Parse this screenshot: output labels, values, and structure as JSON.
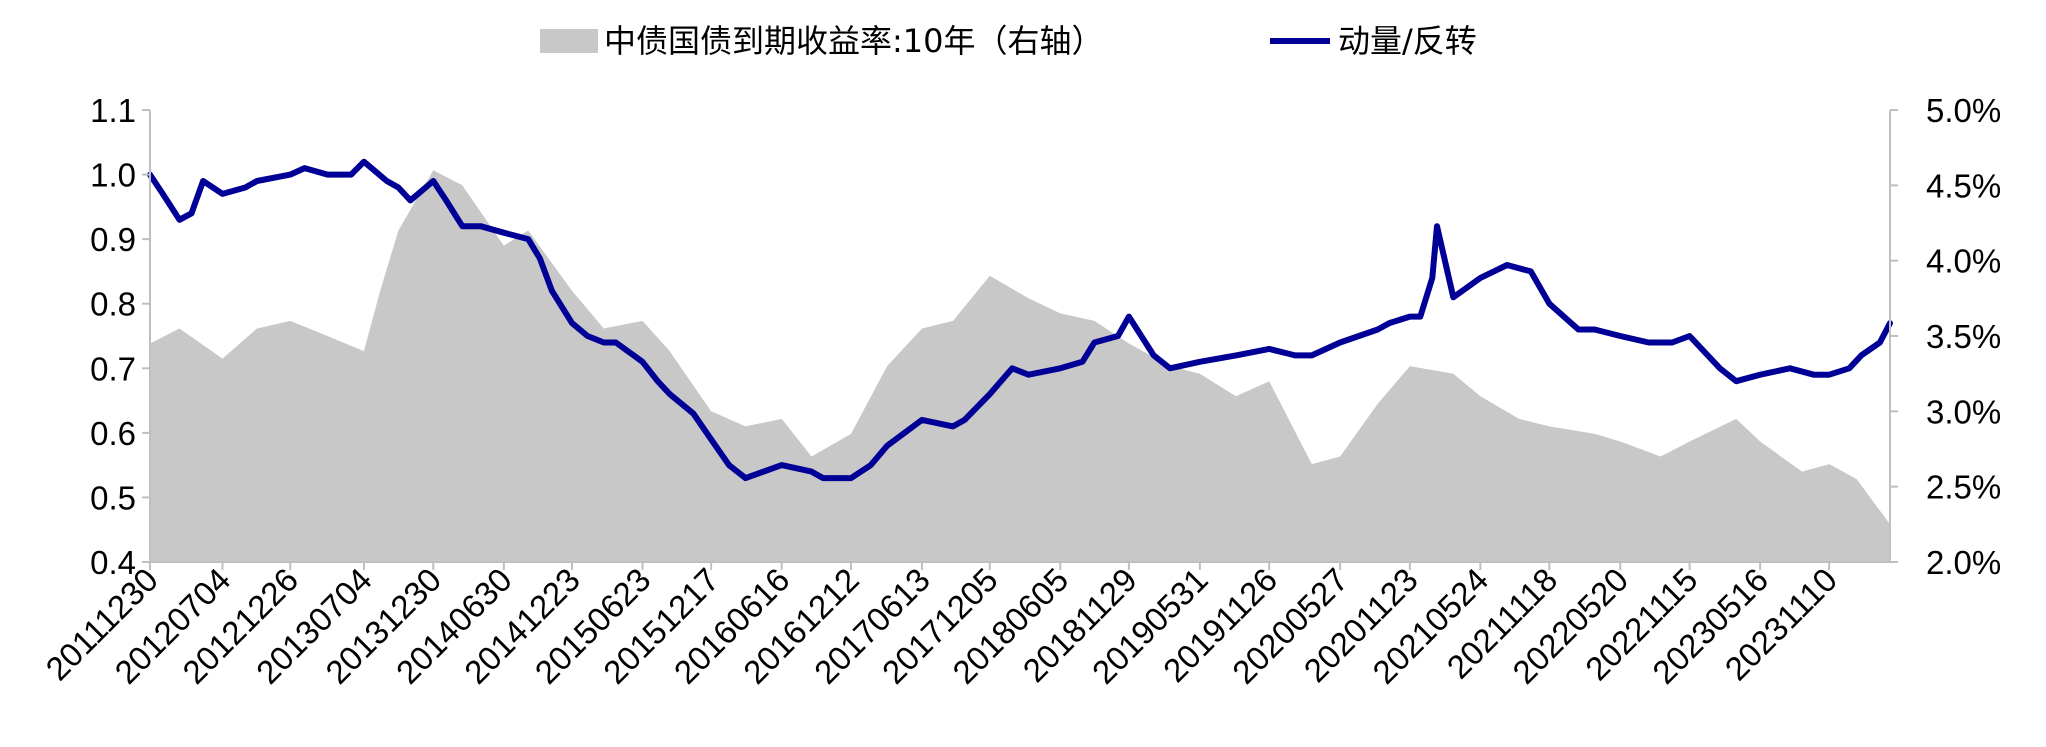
{
  "chart_data": {
    "type": "area+line",
    "legend": {
      "placement": "top-center",
      "items": [
        {
          "label": "中债国债到期收益率:10年（右轴）",
          "kind": "area",
          "color": "#c8c8c8"
        },
        {
          "label": "动量/反转",
          "kind": "line",
          "color": "#000096"
        }
      ]
    },
    "y_left": {
      "range": [
        0.4,
        1.1
      ],
      "ticks": [
        "0.4",
        "0.5",
        "0.6",
        "0.7",
        "0.8",
        "0.9",
        "1.0",
        "1.1"
      ]
    },
    "y_right": {
      "range": [
        2.0,
        5.0
      ],
      "unit": "%",
      "ticks": [
        "2.0%",
        "2.5%",
        "3.0%",
        "3.5%",
        "4.0%",
        "4.5%",
        "5.0%"
      ]
    },
    "x_ticks": [
      "20111230",
      "20120704",
      "20121226",
      "20130704",
      "20131230",
      "20140630",
      "20141223",
      "20150623",
      "20151217",
      "20160616",
      "20161212",
      "20170613",
      "20171205",
      "20180605",
      "20181129",
      "20190531",
      "20191126",
      "20200527",
      "20201123",
      "20210524",
      "20211118",
      "20220520",
      "20221115",
      "20230516",
      "20231110"
    ],
    "series": [
      {
        "name": "中债国债到期收益率:10年（右轴）",
        "axis": "right",
        "type": "area",
        "color": "#c8c8c8",
        "x": [
          "20111230",
          "20120315",
          "20120704",
          "20121001",
          "20121226",
          "20130401",
          "20130704",
          "20130815",
          "20131001",
          "20131230",
          "20140315",
          "20140630",
          "20140901",
          "20141223",
          "20150315",
          "20150623",
          "20150901",
          "20151217",
          "20160315",
          "20160616",
          "20160901",
          "20161212",
          "20170315",
          "20170613",
          "20170901",
          "20171205",
          "20180315",
          "20180605",
          "20180901",
          "20181129",
          "20190315",
          "20190531",
          "20190901",
          "20191126",
          "20200315",
          "20200527",
          "20200901",
          "20201123",
          "20210315",
          "20210524",
          "20210901",
          "20211118",
          "20220315",
          "20220520",
          "20220901",
          "20221115",
          "20230315",
          "20230516",
          "20230901",
          "20231110",
          "20240120",
          "20240415"
        ],
        "values": [
          3.45,
          3.55,
          3.35,
          3.55,
          3.6,
          3.5,
          3.4,
          3.8,
          4.2,
          4.6,
          4.5,
          4.1,
          4.2,
          3.8,
          3.55,
          3.6,
          3.4,
          3.0,
          2.9,
          2.95,
          2.7,
          2.85,
          3.3,
          3.55,
          3.6,
          3.9,
          3.75,
          3.65,
          3.6,
          3.45,
          3.3,
          3.25,
          3.1,
          3.2,
          2.65,
          2.7,
          3.05,
          3.3,
          3.25,
          3.1,
          2.95,
          2.9,
          2.85,
          2.8,
          2.7,
          2.8,
          2.95,
          2.8,
          2.6,
          2.65,
          2.55,
          2.25
        ]
      },
      {
        "name": "动量/反转",
        "axis": "left",
        "type": "line",
        "color": "#000096",
        "x": [
          "20111230",
          "20120201",
          "20120315",
          "20120415",
          "20120515",
          "20120704",
          "20120901",
          "20121001",
          "20121226",
          "20130201",
          "20130401",
          "20130601",
          "20130704",
          "20130901",
          "20131001",
          "20131101",
          "20131230",
          "20140201",
          "20140315",
          "20140501",
          "20140630",
          "20140901",
          "20141001",
          "20141101",
          "20141223",
          "20150201",
          "20150315",
          "20150415",
          "20150623",
          "20150801",
          "20150901",
          "20151101",
          "20151217",
          "20160201",
          "20160315",
          "20160616",
          "20160901",
          "20161001",
          "20161212",
          "20170201",
          "20170315",
          "20170613",
          "20170901",
          "20171001",
          "20171205",
          "20180201",
          "20180315",
          "20180605",
          "20180801",
          "20180901",
          "20181101",
          "20181129",
          "20190201",
          "20190315",
          "20190531",
          "20190901",
          "20191126",
          "20200201",
          "20200315",
          "20200527",
          "20200901",
          "20201001",
          "20201123",
          "20201220",
          "20210120",
          "20210201",
          "20210315",
          "20210524",
          "20210801",
          "20211001",
          "20211118",
          "20220201",
          "20220315",
          "20220520",
          "20220801",
          "20221001",
          "20221115",
          "20230201",
          "20230315",
          "20230516",
          "20230801",
          "20231001",
          "20231110",
          "20240101",
          "20240201",
          "20240320",
          "20240415"
        ],
        "values": [
          1.0,
          0.97,
          0.93,
          0.94,
          0.99,
          0.97,
          0.98,
          0.99,
          1.0,
          1.01,
          1.0,
          1.0,
          1.02,
          0.99,
          0.98,
          0.96,
          0.99,
          0.96,
          0.92,
          0.92,
          0.91,
          0.9,
          0.87,
          0.82,
          0.77,
          0.75,
          0.74,
          0.74,
          0.71,
          0.68,
          0.66,
          0.63,
          0.59,
          0.55,
          0.53,
          0.55,
          0.54,
          0.53,
          0.53,
          0.55,
          0.58,
          0.62,
          0.61,
          0.62,
          0.66,
          0.7,
          0.69,
          0.7,
          0.71,
          0.74,
          0.75,
          0.78,
          0.72,
          0.7,
          0.71,
          0.72,
          0.73,
          0.72,
          0.72,
          0.74,
          0.76,
          0.77,
          0.78,
          0.78,
          0.84,
          0.92,
          0.81,
          0.84,
          0.86,
          0.85,
          0.8,
          0.76,
          0.76,
          0.75,
          0.74,
          0.74,
          0.75,
          0.7,
          0.68,
          0.69,
          0.7,
          0.69,
          0.69,
          0.7,
          0.72,
          0.74,
          0.77
        ]
      }
    ]
  }
}
